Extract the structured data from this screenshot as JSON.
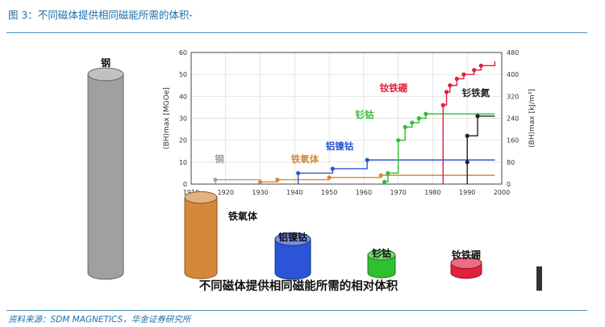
{
  "figure_title": "图 3：不同磁体提供相同磁能所需的体积-",
  "source": "资料来源：SDM MAGNETICS，华金证券研究所",
  "colors": {
    "steel": "#a0a0a0",
    "ferrite": "#d4893a",
    "alnico": "#2b55d6",
    "smco": "#2fbf2f",
    "ndfeb": "#e0203c",
    "smfen": "#222222",
    "accent_rule": "#4f93bd"
  },
  "chart_data": [
    {
      "type": "line",
      "title": "",
      "xlabel": "",
      "ylabel": "(BH)max [MGOe]",
      "y2label": "(BH)max [kJ/m³]",
      "xlim": [
        1910,
        2000
      ],
      "ylim": [
        0,
        60
      ],
      "y2lim": [
        0,
        480
      ],
      "x_ticks": [
        1910,
        1920,
        1930,
        1940,
        1950,
        1960,
        1970,
        1980,
        1990,
        2000
      ],
      "y_ticks": [
        0,
        10,
        20,
        30,
        40,
        50,
        60
      ],
      "y2_ticks": [
        0,
        80,
        160,
        240,
        320,
        400,
        480
      ],
      "grid": true,
      "series": [
        {
          "name": "钢",
          "color_key": "steel",
          "x": [
            1917,
            1930
          ],
          "y": [
            2,
            2
          ]
        },
        {
          "name": "铁氧体",
          "color_key": "ferrite",
          "x": [
            1930,
            1935,
            1950,
            1965,
            1998
          ],
          "y": [
            1,
            2,
            3,
            4,
            4
          ]
        },
        {
          "name": "铝镍钴",
          "color_key": "alnico",
          "x": [
            1941,
            1951,
            1961,
            1998
          ],
          "y": [
            5,
            7,
            11,
            11
          ]
        },
        {
          "name": "钐钴",
          "color_key": "smco",
          "x": [
            1966,
            1967,
            1970,
            1972,
            1974,
            1976,
            1978,
            1998
          ],
          "y": [
            1,
            5,
            20,
            26,
            28,
            30,
            32,
            32
          ]
        },
        {
          "name": "钕铁硼",
          "color_key": "ndfeb",
          "x": [
            1983,
            1984,
            1985,
            1987,
            1989,
            1992,
            1994,
            1998
          ],
          "y": [
            36,
            42,
            45,
            48,
            50,
            52,
            54,
            56
          ]
        },
        {
          "name": "钐铁氮",
          "color_key": "smfen",
          "x": [
            1990,
            1990,
            1993,
            1998
          ],
          "y": [
            10,
            22,
            31,
            31
          ]
        }
      ]
    },
    {
      "type": "bar",
      "title": "不同磁体提供相同磁能所需的相对体积",
      "categories": [
        "钢",
        "铁氧体",
        "铝镍钴",
        "钐钴",
        "钕铁硼"
      ],
      "color_keys": [
        "steel",
        "ferrite",
        "alnico",
        "smco",
        "ndfeb"
      ],
      "values": [
        100,
        38,
        17,
        9,
        5
      ]
    }
  ]
}
